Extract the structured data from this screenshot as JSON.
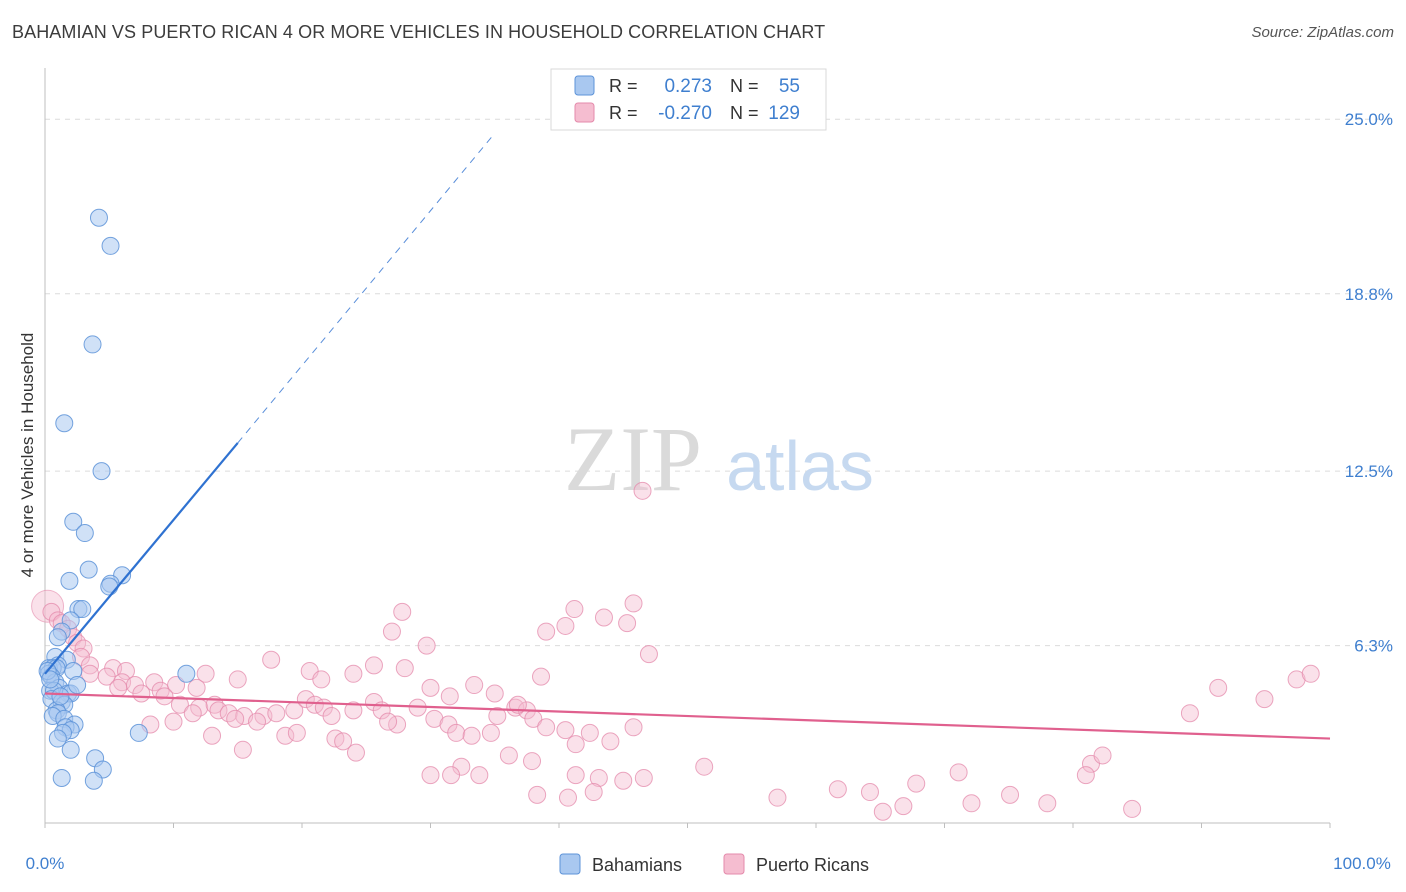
{
  "title": "BAHAMIAN VS PUERTO RICAN 4 OR MORE VEHICLES IN HOUSEHOLD CORRELATION CHART",
  "source": "Source: ZipAtlas.com",
  "watermark": {
    "zip": "ZIP",
    "atlas": "atlas"
  },
  "colors": {
    "blue_fill": "#a9c8f0",
    "blue_stroke": "#5d93d8",
    "blue_line": "#2f72d1",
    "pink_fill": "#f5bdd0",
    "pink_stroke": "#e48aab",
    "pink_line": "#e0608e",
    "axis_label": "#3f7fcf",
    "grid": "#dcdcdc"
  },
  "legend": {
    "rows": [
      {
        "r_label": "R =",
        "r_value": "0.273",
        "n_label": "N =",
        "n_value": "55"
      },
      {
        "r_label": "R =",
        "r_value": "-0.270",
        "n_label": "N =",
        "n_value": "129"
      }
    ]
  },
  "chart_data": {
    "type": "scatter",
    "title": "BAHAMIAN VS PUERTO RICAN 4 OR MORE VEHICLES IN HOUSEHOLD CORRELATION CHART",
    "xlabel": "",
    "ylabel": "4 or more Vehicles in Household",
    "xlim": [
      0,
      100
    ],
    "ylim": [
      0,
      26.5
    ],
    "x_tick_labels": [
      "0.0%",
      "100.0%"
    ],
    "y_ticks": [
      6.3,
      12.5,
      18.8,
      25.0
    ],
    "y_tick_labels": [
      "6.3%",
      "12.5%",
      "18.8%",
      "25.0%"
    ],
    "legend_bottom": [
      "Bahamians",
      "Puerto Ricans"
    ],
    "series": [
      {
        "name": "Bahamians",
        "r": 0.273,
        "n": 55,
        "trend": {
          "x0": 0,
          "y0": 5.3,
          "x1": 15,
          "y1": 13.5,
          "dash_to_x": 35,
          "dash_to_y": 24.5
        },
        "points": [
          [
            4.2,
            21.5
          ],
          [
            5.1,
            20.5
          ],
          [
            3.7,
            17.0
          ],
          [
            1.5,
            14.2
          ],
          [
            4.4,
            12.5
          ],
          [
            2.2,
            10.7
          ],
          [
            3.1,
            10.3
          ],
          [
            3.4,
            9.0
          ],
          [
            1.9,
            8.6
          ],
          [
            6.0,
            8.8
          ],
          [
            5.1,
            8.5
          ],
          [
            5.0,
            8.4
          ],
          [
            2.6,
            7.6
          ],
          [
            2.9,
            7.6
          ],
          [
            2.0,
            7.2
          ],
          [
            1.3,
            6.8
          ],
          [
            1.0,
            6.6
          ],
          [
            0.8,
            5.9
          ],
          [
            1.7,
            5.8
          ],
          [
            1.0,
            5.6
          ],
          [
            0.3,
            5.5
          ],
          [
            0.6,
            5.5
          ],
          [
            0.9,
            5.5
          ],
          [
            2.2,
            5.4
          ],
          [
            0.3,
            5.3
          ],
          [
            0.5,
            5.2
          ],
          [
            0.8,
            5.0
          ],
          [
            1.1,
            4.8
          ],
          [
            0.4,
            4.7
          ],
          [
            0.7,
            4.7
          ],
          [
            1.8,
            4.6
          ],
          [
            2.0,
            4.6
          ],
          [
            0.5,
            4.4
          ],
          [
            1.3,
            4.3
          ],
          [
            1.5,
            4.2
          ],
          [
            0.9,
            4.0
          ],
          [
            1.0,
            3.9
          ],
          [
            0.6,
            3.8
          ],
          [
            1.5,
            3.7
          ],
          [
            2.3,
            3.5
          ],
          [
            1.6,
            3.4
          ],
          [
            2.0,
            3.3
          ],
          [
            1.4,
            3.2
          ],
          [
            7.3,
            3.2
          ],
          [
            1.0,
            3.0
          ],
          [
            2.0,
            2.6
          ],
          [
            3.9,
            2.3
          ],
          [
            4.5,
            1.9
          ],
          [
            1.3,
            1.6
          ],
          [
            3.8,
            1.5
          ],
          [
            11.0,
            5.3
          ],
          [
            0.2,
            5.4
          ],
          [
            0.4,
            5.1
          ],
          [
            1.2,
            4.5
          ],
          [
            2.5,
            4.9
          ]
        ]
      },
      {
        "name": "Puerto Ricans",
        "r": -0.27,
        "n": 129,
        "trend": {
          "x0": 0,
          "y0": 4.6,
          "x1": 100,
          "y1": 3.0
        },
        "points": [
          [
            46.5,
            11.8
          ],
          [
            0.5,
            7.5
          ],
          [
            1.0,
            7.2
          ],
          [
            1.3,
            7.1
          ],
          [
            1.8,
            6.9
          ],
          [
            2.2,
            6.6
          ],
          [
            2.5,
            6.4
          ],
          [
            3.0,
            6.2
          ],
          [
            2.8,
            5.9
          ],
          [
            3.5,
            5.6
          ],
          [
            5.3,
            5.5
          ],
          [
            6.3,
            5.4
          ],
          [
            3.5,
            5.3
          ],
          [
            4.8,
            5.2
          ],
          [
            6.0,
            5.0
          ],
          [
            5.7,
            4.8
          ],
          [
            8.5,
            5.0
          ],
          [
            9.0,
            4.7
          ],
          [
            7.0,
            4.9
          ],
          [
            10.2,
            4.9
          ],
          [
            11.8,
            4.8
          ],
          [
            7.5,
            4.6
          ],
          [
            9.3,
            4.5
          ],
          [
            10.5,
            4.2
          ],
          [
            12.0,
            4.1
          ],
          [
            13.2,
            4.2
          ],
          [
            13.5,
            4.0
          ],
          [
            14.3,
            3.9
          ],
          [
            15.5,
            3.8
          ],
          [
            17.0,
            3.8
          ],
          [
            16.5,
            3.6
          ],
          [
            18.0,
            3.9
          ],
          [
            19.4,
            4.0
          ],
          [
            20.3,
            4.4
          ],
          [
            21.0,
            4.2
          ],
          [
            21.7,
            4.1
          ],
          [
            22.3,
            3.8
          ],
          [
            24.0,
            4.0
          ],
          [
            25.6,
            4.3
          ],
          [
            26.2,
            4.0
          ],
          [
            27.4,
            3.5
          ],
          [
            29.0,
            4.1
          ],
          [
            30.3,
            3.7
          ],
          [
            31.4,
            3.5
          ],
          [
            32.0,
            3.2
          ],
          [
            33.2,
            3.1
          ],
          [
            34.7,
            3.2
          ],
          [
            35.2,
            3.8
          ],
          [
            36.6,
            4.1
          ],
          [
            37.5,
            4.0
          ],
          [
            38.0,
            3.7
          ],
          [
            39.0,
            3.4
          ],
          [
            40.5,
            3.3
          ],
          [
            41.3,
            2.8
          ],
          [
            42.4,
            3.2
          ],
          [
            44.0,
            2.9
          ],
          [
            45.8,
            3.4
          ],
          [
            8.2,
            3.5
          ],
          [
            10.0,
            3.6
          ],
          [
            11.5,
            3.9
          ],
          [
            14.8,
            3.7
          ],
          [
            13.0,
            3.1
          ],
          [
            15.4,
            2.6
          ],
          [
            18.7,
            3.1
          ],
          [
            19.6,
            3.2
          ],
          [
            22.6,
            3.0
          ],
          [
            23.2,
            2.9
          ],
          [
            24.2,
            2.5
          ],
          [
            26.7,
            3.6
          ],
          [
            28.0,
            5.5
          ],
          [
            29.7,
            6.3
          ],
          [
            30.0,
            4.8
          ],
          [
            31.5,
            4.5
          ],
          [
            33.4,
            4.9
          ],
          [
            35.0,
            4.6
          ],
          [
            36.8,
            4.2
          ],
          [
            38.6,
            5.2
          ],
          [
            39.0,
            6.8
          ],
          [
            40.5,
            7.0
          ],
          [
            41.2,
            7.6
          ],
          [
            43.5,
            7.3
          ],
          [
            45.3,
            7.1
          ],
          [
            45.8,
            7.8
          ],
          [
            47.0,
            6.0
          ],
          [
            20.6,
            5.4
          ],
          [
            25.6,
            5.6
          ],
          [
            27.0,
            6.8
          ],
          [
            27.8,
            7.5
          ],
          [
            24.0,
            5.3
          ],
          [
            21.5,
            5.1
          ],
          [
            17.6,
            5.8
          ],
          [
            15.0,
            5.1
          ],
          [
            12.5,
            5.3
          ],
          [
            37.9,
            2.2
          ],
          [
            36.1,
            2.4
          ],
          [
            32.4,
            2.0
          ],
          [
            31.6,
            1.7
          ],
          [
            33.8,
            1.7
          ],
          [
            30.0,
            1.7
          ],
          [
            41.3,
            1.7
          ],
          [
            43.1,
            1.6
          ],
          [
            45.0,
            1.5
          ],
          [
            46.6,
            1.6
          ],
          [
            51.3,
            2.0
          ],
          [
            38.3,
            1.0
          ],
          [
            40.7,
            0.9
          ],
          [
            42.7,
            1.1
          ],
          [
            57.0,
            0.9
          ],
          [
            61.7,
            1.2
          ],
          [
            64.2,
            1.1
          ],
          [
            65.2,
            0.4
          ],
          [
            66.8,
            0.6
          ],
          [
            67.8,
            1.4
          ],
          [
            71.1,
            1.8
          ],
          [
            72.1,
            0.7
          ],
          [
            75.1,
            1.0
          ],
          [
            81.4,
            2.1
          ],
          [
            82.3,
            2.4
          ],
          [
            84.6,
            0.5
          ],
          [
            81.0,
            1.7
          ],
          [
            78.0,
            0.7
          ],
          [
            89.1,
            3.9
          ],
          [
            91.3,
            4.8
          ],
          [
            94.9,
            4.4
          ],
          [
            97.4,
            5.1
          ],
          [
            98.5,
            5.3
          ]
        ]
      }
    ]
  }
}
